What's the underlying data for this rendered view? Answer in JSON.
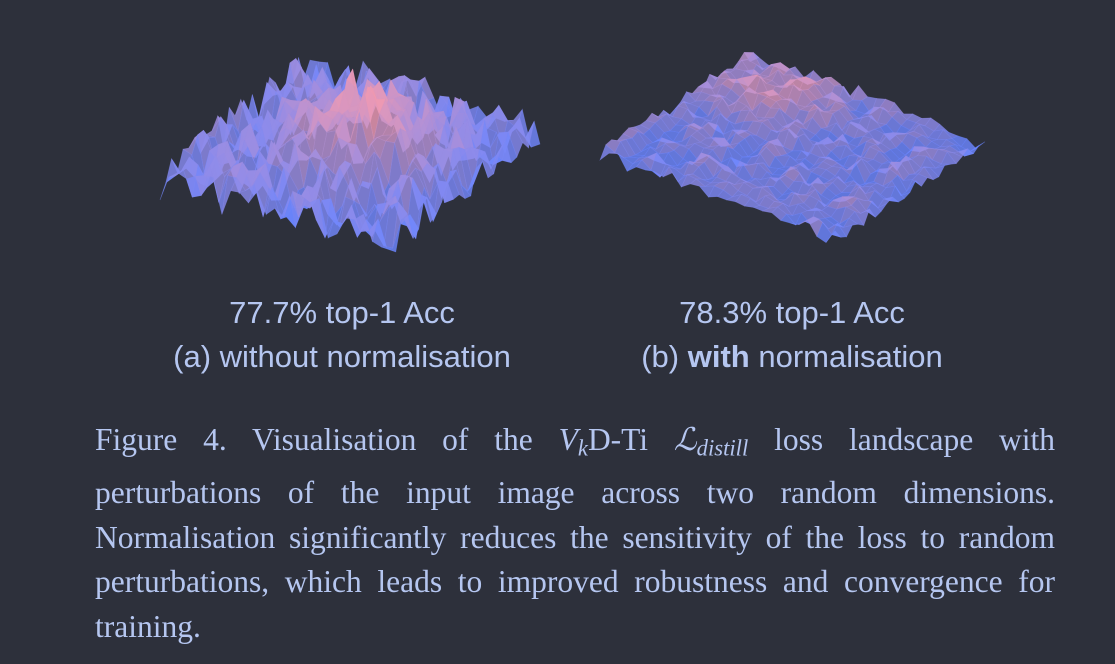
{
  "panels": [
    {
      "accuracy": "77.7% top-1 Acc",
      "label_prefix": "(a) without normalisation",
      "colors": {
        "low": "#6b86ff",
        "high": "#f29ab0"
      }
    },
    {
      "accuracy": "78.3% top-1 Acc",
      "label_open": "(b)",
      "label_bold": "with",
      "label_rest": "normalisation",
      "colors": {
        "low": "#6b86ff",
        "high": "#f29ab0"
      }
    }
  ],
  "caption": {
    "lead": "Figure 4. Visualisation of the",
    "v": "V",
    "v_sub": "k",
    "model": "D-Ti",
    "loss_symbol": "ℒ",
    "loss_sub": "distill",
    "rest": "loss landscape with perturbations of the input image across two random dimensions. Normalisation significantly reduces the sensitivity of the loss to random perturbations, which leads to improved robustness and convergence for training."
  }
}
